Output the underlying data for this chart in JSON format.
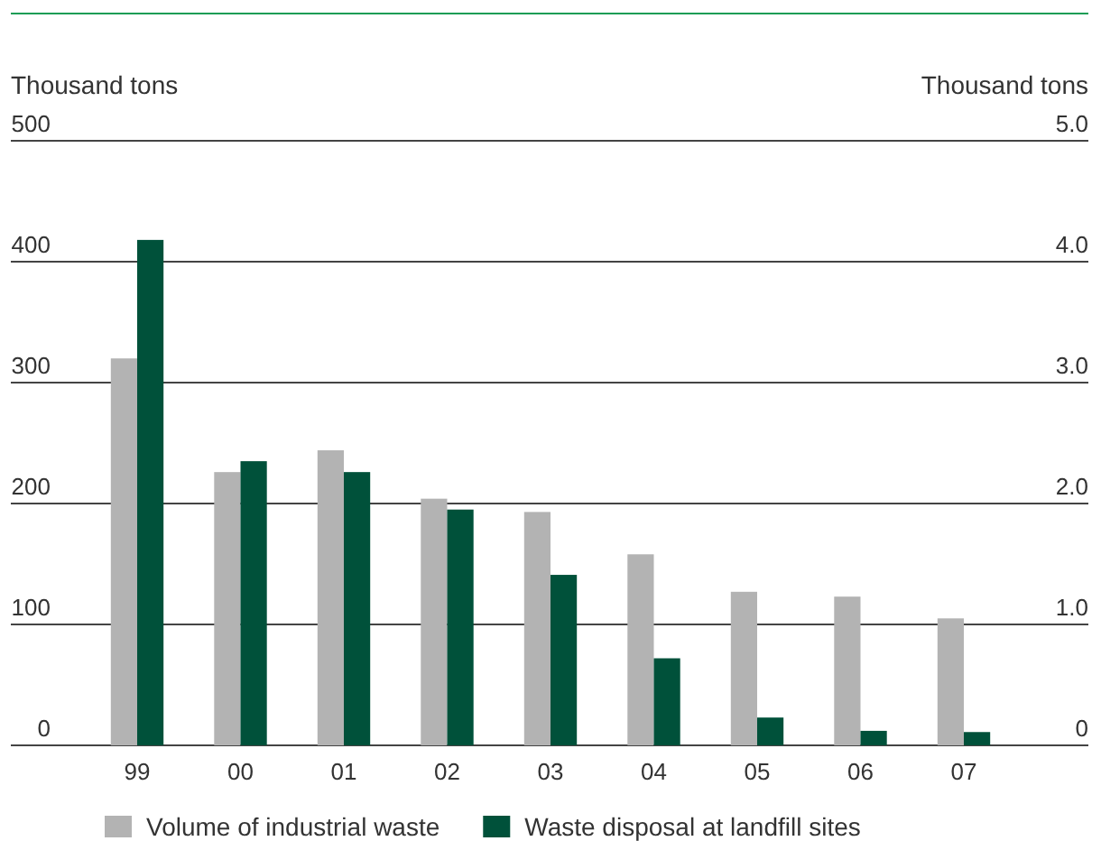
{
  "chart_data": {
    "type": "bar",
    "categories": [
      "99",
      "00",
      "01",
      "02",
      "03",
      "04",
      "05",
      "06",
      "07"
    ],
    "series": [
      {
        "name": "Volume of industrial waste",
        "color": "#b3b3b3",
        "values": [
          320,
          226,
          244,
          204,
          193,
          158,
          127,
          123,
          105
        ]
      },
      {
        "name": "Waste disposal at landfill sites",
        "color": "#00513a",
        "axis": "y2",
        "values": [
          4.18,
          2.35,
          2.26,
          1.95,
          1.41,
          0.72,
          0.23,
          0.12,
          0.11
        ]
      }
    ],
    "ylabel": "Thousand tons",
    "y2label": "Thousand tons",
    "ylim": [
      0,
      500
    ],
    "yticks": [
      0,
      100,
      200,
      300,
      400,
      500
    ],
    "y2lim": [
      0,
      5
    ],
    "y2ticks": [
      0,
      {
        "value": 1,
        "label": "1.0"
      },
      {
        "value": 2,
        "label": "2.0"
      },
      {
        "value": 3,
        "label": "3.0"
      },
      {
        "value": 4,
        "label": "4.0"
      },
      {
        "value": 5,
        "label": "5.0"
      }
    ],
    "grid": "y",
    "legend": "bottom"
  }
}
